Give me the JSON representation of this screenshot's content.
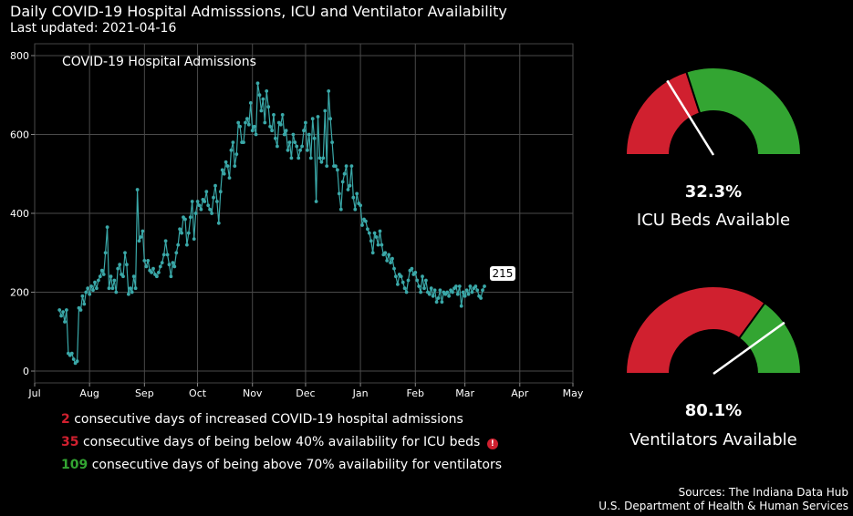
{
  "header": {
    "title": "Daily COVID-19 Hospital Admisssions, ICU and Ventilator Availability",
    "subtitle": "Last updated: 2021-04-16"
  },
  "chart_data": {
    "type": "line",
    "title": "COVID-19 Hospital Admissions",
    "xlabel": "",
    "ylabel": "",
    "x_tick_labels": [
      "Jul",
      "Aug",
      "Sep",
      "Oct",
      "Nov",
      "Dec",
      "Jan",
      "Feb",
      "Mar",
      "Apr",
      "May"
    ],
    "y_ticks": [
      0,
      200,
      400,
      600,
      800
    ],
    "ylim": [
      -30,
      830
    ],
    "xlim": [
      "2020-07-01",
      "2021-05-01"
    ],
    "grid": true,
    "line_color": "#3aa8a8",
    "last_value_label": "215",
    "series": [
      {
        "start_date": "2020-07-15",
        "values": [
          155,
          140,
          150,
          125,
          155,
          45,
          40,
          45,
          30,
          20,
          25,
          160,
          155,
          190,
          170,
          200,
          210,
          195,
          215,
          205,
          225,
          210,
          230,
          240,
          255,
          245,
          300,
          365,
          210,
          240,
          210,
          230,
          200,
          260,
          270,
          245,
          240,
          300,
          270,
          195,
          210,
          200,
          240,
          210,
          460,
          330,
          340,
          355,
          280,
          265,
          280,
          255,
          250,
          260,
          245,
          240,
          250,
          265,
          275,
          295,
          330,
          295,
          270,
          240,
          275,
          265,
          300,
          320,
          360,
          350,
          390,
          385,
          320,
          350,
          390,
          430,
          335,
          400,
          430,
          420,
          410,
          435,
          430,
          455,
          420,
          410,
          400,
          440,
          470,
          430,
          375,
          455,
          510,
          500,
          530,
          520,
          490,
          560,
          580,
          520,
          550,
          630,
          620,
          580,
          580,
          630,
          640,
          625,
          680,
          610,
          620,
          600,
          730,
          700,
          660,
          690,
          630,
          710,
          670,
          620,
          610,
          650,
          590,
          570,
          630,
          625,
          650,
          600,
          610,
          560,
          580,
          540,
          600,
          580,
          570,
          540,
          560,
          570,
          610,
          630,
          560,
          600,
          540,
          640,
          590,
          430,
          645,
          540,
          530,
          540,
          660,
          520,
          710,
          640,
          580,
          520,
          520,
          510,
          450,
          410,
          480,
          500,
          520,
          460,
          470,
          520,
          440,
          410,
          450,
          425,
          420,
          370,
          385,
          380,
          360,
          350,
          330,
          300,
          350,
          340,
          320,
          355,
          320,
          295,
          300,
          280,
          295,
          275,
          285,
          260,
          240,
          220,
          245,
          240,
          225,
          210,
          200,
          230,
          255,
          260,
          245,
          250,
          230,
          215,
          200,
          240,
          210,
          230,
          200,
          195,
          210,
          190,
          205,
          175,
          185,
          205,
          175,
          200,
          195,
          200,
          190,
          205,
          200,
          210,
          215,
          195,
          215,
          165,
          200,
          190,
          205,
          195,
          215,
          200,
          210,
          215,
          205,
          190,
          185,
          205,
          215
        ]
      }
    ]
  },
  "stats": [
    {
      "value": "2",
      "text": "consecutive days of increased COVID-19 hospital admissions",
      "color": "#d0202f"
    },
    {
      "value": "35",
      "text": "consecutive days of being below 40% availability for ICU beds",
      "color": "#d0202f",
      "icon": "alert-icon"
    },
    {
      "value": "109",
      "text": "consecutive days of being above 70% availability for ventilators",
      "color": "#33a532"
    }
  ],
  "gauges": [
    {
      "percent_text": "32.3%",
      "label": "ICU Beds Available",
      "value": 0.323,
      "threshold": 0.4
    },
    {
      "percent_text": "80.1%",
      "label": "Ventilators Available",
      "value": 0.801,
      "threshold": 0.7
    }
  ],
  "colors": {
    "red": "#d0202f",
    "green": "#33a532",
    "needle": "#ffffff"
  },
  "sources": {
    "line1": "Sources: The Indiana Data Hub",
    "line2": "U.S. Department of Health & Human Services"
  }
}
